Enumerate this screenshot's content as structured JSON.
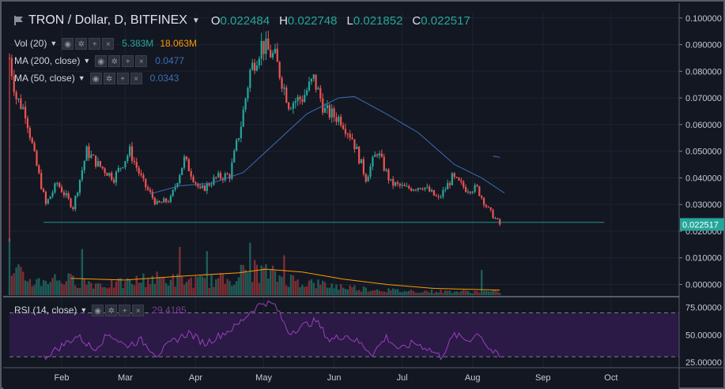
{
  "header": {
    "title": "TRON / Dollar, D, BITFINEX",
    "ohlc": [
      {
        "key": "O",
        "value": "0.022484"
      },
      {
        "key": "H",
        "value": "0.022748"
      },
      {
        "key": "L",
        "value": "0.021852"
      },
      {
        "key": "C",
        "value": "0.022517"
      }
    ]
  },
  "indicators": {
    "vol": {
      "label": "Vol (20)",
      "value1": "5.383M",
      "value2": "18.063M"
    },
    "ma200": {
      "label": "MA (200, close)",
      "value": "0.0477"
    },
    "ma50": {
      "label": "MA (50, close)",
      "value": "0.0343"
    },
    "rsi": {
      "label": "RSI (14, close)",
      "value": "29.4185"
    }
  },
  "colors": {
    "up": "#26a69a",
    "down": "#ef5350",
    "ma50": "#3a6fb5",
    "vol_ma": "#ff9800",
    "rsi_line": "#9c3fbf",
    "rsi_band": "#2a1a45",
    "price_badge": "#26a69a",
    "background": "#131722"
  },
  "chart_data": [
    {
      "type": "candlestick",
      "title": "TRON / Dollar, D, BITFINEX",
      "x_type": "date",
      "x_range": [
        "2018-01-09",
        "2018-10-31"
      ],
      "y_range": [
        -0.004,
        0.102
      ],
      "y_ticks": [
        "0.100000",
        "0.090000",
        "0.080000",
        "0.070000",
        "0.060000",
        "0.050000",
        "0.040000",
        "0.030000",
        "0.020000",
        "0.010000",
        "0.000000"
      ],
      "x_ticks": [
        "Feb",
        "Mar",
        "Apr",
        "May",
        "Jun",
        "Jul",
        "Aug",
        "Sep",
        "Oct"
      ],
      "last_price_label": "0.022517",
      "last_price": 0.022517,
      "price_path": [
        [
          "2018-01-09",
          0.085
        ],
        [
          "2018-01-12",
          0.07
        ],
        [
          "2018-01-16",
          0.065
        ],
        [
          "2018-01-20",
          0.048
        ],
        [
          "2018-01-25",
          0.03
        ],
        [
          "2018-01-30",
          0.038
        ],
        [
          "2018-02-06",
          0.029
        ],
        [
          "2018-02-12",
          0.05
        ],
        [
          "2018-02-17",
          0.045
        ],
        [
          "2018-02-24",
          0.04
        ],
        [
          "2018-03-03",
          0.05
        ],
        [
          "2018-03-09",
          0.038
        ],
        [
          "2018-03-15",
          0.03
        ],
        [
          "2018-03-21",
          0.032
        ],
        [
          "2018-03-27",
          0.047
        ],
        [
          "2018-04-03",
          0.035
        ],
        [
          "2018-04-10",
          0.04
        ],
        [
          "2018-04-16",
          0.041
        ],
        [
          "2018-04-21",
          0.06
        ],
        [
          "2018-04-25",
          0.08
        ],
        [
          "2018-04-30",
          0.09
        ],
        [
          "2018-05-06",
          0.085
        ],
        [
          "2018-05-12",
          0.068
        ],
        [
          "2018-05-18",
          0.07
        ],
        [
          "2018-05-23",
          0.077
        ],
        [
          "2018-05-28",
          0.065
        ],
        [
          "2018-06-04",
          0.062
        ],
        [
          "2018-06-09",
          0.055
        ],
        [
          "2018-06-15",
          0.04
        ],
        [
          "2018-06-20",
          0.05
        ],
        [
          "2018-06-26",
          0.038
        ],
        [
          "2018-07-03",
          0.036
        ],
        [
          "2018-07-10",
          0.037
        ],
        [
          "2018-07-17",
          0.032
        ],
        [
          "2018-07-23",
          0.04
        ],
        [
          "2018-07-29",
          0.036
        ],
        [
          "2018-08-03",
          0.036
        ],
        [
          "2018-08-08",
          0.028
        ],
        [
          "2018-08-13",
          0.0225
        ]
      ],
      "series": [
        {
          "name": "MA (50, close)",
          "type": "line",
          "points": [
            [
              "2018-03-12",
              0.034
            ],
            [
              "2018-03-25",
              0.037
            ],
            [
              "2018-04-08",
              0.038
            ],
            [
              "2018-04-22",
              0.042
            ],
            [
              "2018-05-06",
              0.053
            ],
            [
              "2018-05-20",
              0.064
            ],
            [
              "2018-06-03",
              0.07
            ],
            [
              "2018-06-10",
              0.0705
            ],
            [
              "2018-06-24",
              0.064
            ],
            [
              "2018-07-08",
              0.057
            ],
            [
              "2018-07-24",
              0.045
            ],
            [
              "2018-08-05",
              0.04
            ],
            [
              "2018-08-15",
              0.0343
            ]
          ]
        }
      ],
      "horizontal_line": 0.0233
    },
    {
      "type": "bar",
      "title": "Vol (20)",
      "y_range": [
        0,
        16
      ],
      "moving_average": "Vol (20)",
      "volume_path": [
        [
          "2018-01-09",
          3.5
        ],
        [
          "2018-01-13",
          5.0
        ],
        [
          "2018-01-20",
          3.0
        ],
        [
          "2018-01-27",
          4.0
        ],
        [
          "2018-02-06",
          3.5
        ],
        [
          "2018-02-13",
          3.0
        ],
        [
          "2018-02-20",
          2.5
        ],
        [
          "2018-03-01",
          2.8
        ],
        [
          "2018-03-12",
          4.0
        ],
        [
          "2018-03-25",
          3.5
        ],
        [
          "2018-04-05",
          3.2
        ],
        [
          "2018-04-15",
          3.8
        ],
        [
          "2018-04-25",
          6.0
        ],
        [
          "2018-05-01",
          5.5
        ],
        [
          "2018-05-10",
          4.0
        ],
        [
          "2018-05-20",
          3.0
        ],
        [
          "2018-06-01",
          2.2
        ],
        [
          "2018-06-15",
          1.5
        ],
        [
          "2018-07-01",
          1.0
        ],
        [
          "2018-07-20",
          0.9
        ],
        [
          "2018-08-13",
          0.8
        ]
      ],
      "volume_spikes": [
        [
          "2018-01-09",
          13.5
        ],
        [
          "2018-02-10",
          11.0
        ],
        [
          "2018-03-25",
          11.5
        ],
        [
          "2018-04-06",
          10.5
        ],
        [
          "2018-04-25",
          12.5
        ],
        [
          "2018-05-10",
          9.5
        ],
        [
          "2018-08-05",
          6.0
        ]
      ],
      "ma_points": [
        [
          "2018-02-05",
          4.0
        ],
        [
          "2018-03-01",
          3.6
        ],
        [
          "2018-03-25",
          4.5
        ],
        [
          "2018-04-20",
          5.3
        ],
        [
          "2018-05-02",
          6.2
        ],
        [
          "2018-05-18",
          5.5
        ],
        [
          "2018-06-05",
          3.8
        ],
        [
          "2018-06-25",
          2.5
        ],
        [
          "2018-07-15",
          1.6
        ],
        [
          "2018-08-13",
          1.2
        ]
      ]
    },
    {
      "type": "line",
      "title": "RSI (14, close)",
      "y_range": [
        20,
        82
      ],
      "y_ticks": [
        "75.00000",
        "50.00000",
        "25.00000"
      ],
      "band": [
        30,
        70
      ],
      "series": [
        {
          "name": "RSI (14, close)",
          "points": [
            [
              "2018-01-24",
              29
            ],
            [
              "2018-02-01",
              40
            ],
            [
              "2018-02-08",
              49
            ],
            [
              "2018-02-15",
              37
            ],
            [
              "2018-02-22",
              51
            ],
            [
              "2018-03-01",
              40
            ],
            [
              "2018-03-08",
              45
            ],
            [
              "2018-03-15",
              32
            ],
            [
              "2018-03-22",
              44
            ],
            [
              "2018-03-29",
              52
            ],
            [
              "2018-04-05",
              42
            ],
            [
              "2018-04-12",
              50
            ],
            [
              "2018-04-19",
              58
            ],
            [
              "2018-04-26",
              73
            ],
            [
              "2018-05-01",
              80
            ],
            [
              "2018-05-06",
              77
            ],
            [
              "2018-05-12",
              52
            ],
            [
              "2018-05-18",
              58
            ],
            [
              "2018-05-24",
              63
            ],
            [
              "2018-05-30",
              45
            ],
            [
              "2018-06-06",
              50
            ],
            [
              "2018-06-12",
              43
            ],
            [
              "2018-06-18",
              33
            ],
            [
              "2018-06-24",
              48
            ],
            [
              "2018-06-30",
              36
            ],
            [
              "2018-07-06",
              43
            ],
            [
              "2018-07-12",
              38
            ],
            [
              "2018-07-18",
              30
            ],
            [
              "2018-07-24",
              50
            ],
            [
              "2018-07-30",
              45
            ],
            [
              "2018-08-04",
              52
            ],
            [
              "2018-08-08",
              38
            ],
            [
              "2018-08-13",
              29.4
            ]
          ]
        }
      ]
    }
  ]
}
